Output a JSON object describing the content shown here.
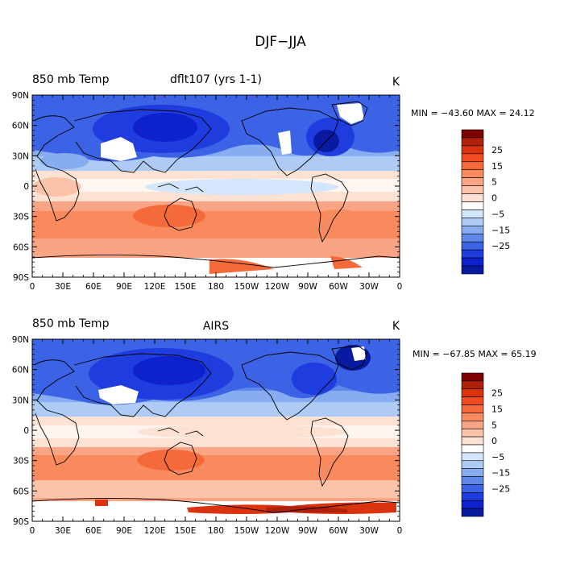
{
  "title": "DJF−JJA",
  "panels": [
    {
      "field_label": "850 mb Temp",
      "source_label": "dflt107 (yrs 1-1)",
      "units": "K",
      "stats": "MIN = −43.60  MAX =  24.12"
    },
    {
      "field_label": "850 mb Temp",
      "source_label": "AIRS",
      "units": "K",
      "stats": "MIN = −67.85  MAX =  65.19"
    }
  ],
  "lat_ticks": [
    "90N",
    "60N",
    "30N",
    "0",
    "30S",
    "60S",
    "90S"
  ],
  "lon_ticks": [
    "0",
    "30E",
    "60E",
    "90E",
    "120E",
    "150E",
    "180",
    "150W",
    "120W",
    "90W",
    "60W",
    "30W",
    "0"
  ],
  "colorbar": {
    "labels": [
      "25",
      "15",
      "5",
      "0",
      "−5",
      "−15",
      "−25"
    ],
    "colors_top_to_bottom": [
      "#7f0000",
      "#b0200a",
      "#d9330f",
      "#f04c1e",
      "#f56a3a",
      "#f88a5e",
      "#f9a585",
      "#fbc3aa",
      "#fde1d2",
      "#ffffff",
      "#d3e6fb",
      "#aecbf6",
      "#87acf0",
      "#5f88ea",
      "#3c62e6",
      "#1f3ddf",
      "#0d22cc",
      "#071aa0"
    ]
  },
  "palette": {
    "missing": "#ffffff",
    "coastline": "#000000"
  }
}
